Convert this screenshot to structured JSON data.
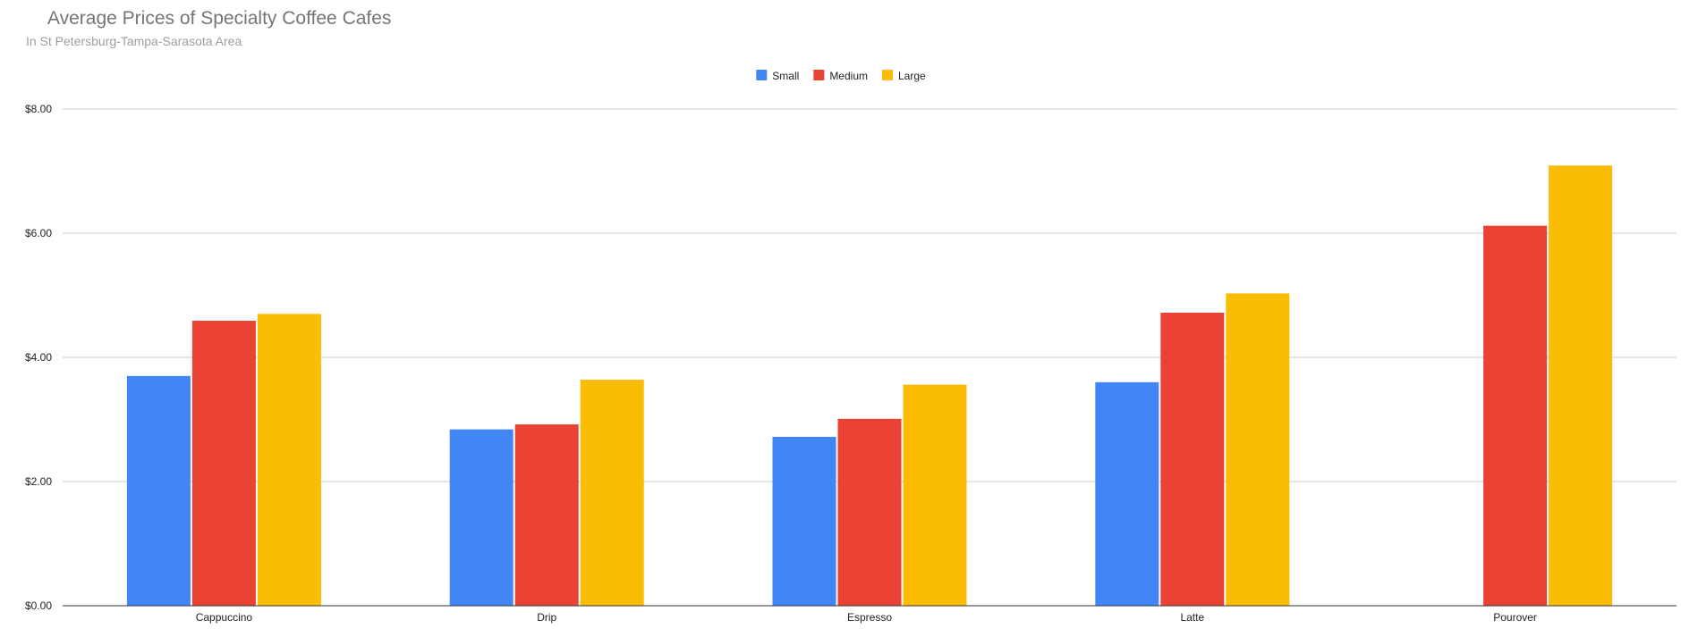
{
  "chart_data": {
    "type": "bar",
    "title": "Average Prices of Specialty Coffee Cafes",
    "subtitle": "In St Petersburg-Tampa-Sarasota Area",
    "categories": [
      "Cappuccino",
      "Drip",
      "Espresso",
      "Latte",
      "Pourover"
    ],
    "series": [
      {
        "name": "Small",
        "color": "#4285f4",
        "values": [
          3.7,
          2.84,
          2.72,
          3.6,
          null
        ]
      },
      {
        "name": "Medium",
        "color": "#ea4335",
        "values": [
          4.59,
          2.92,
          3.01,
          4.72,
          6.12
        ]
      },
      {
        "name": "Large",
        "color": "#fbbc04",
        "values": [
          4.7,
          3.64,
          3.56,
          5.03,
          7.09
        ]
      }
    ],
    "y_ticks": [
      "$0.00",
      "$2.00",
      "$4.00",
      "$6.00",
      "$8.00"
    ],
    "ylim": [
      0,
      8
    ],
    "xlabel": "",
    "ylabel": "",
    "grid": true,
    "legend_position": "top-center"
  }
}
